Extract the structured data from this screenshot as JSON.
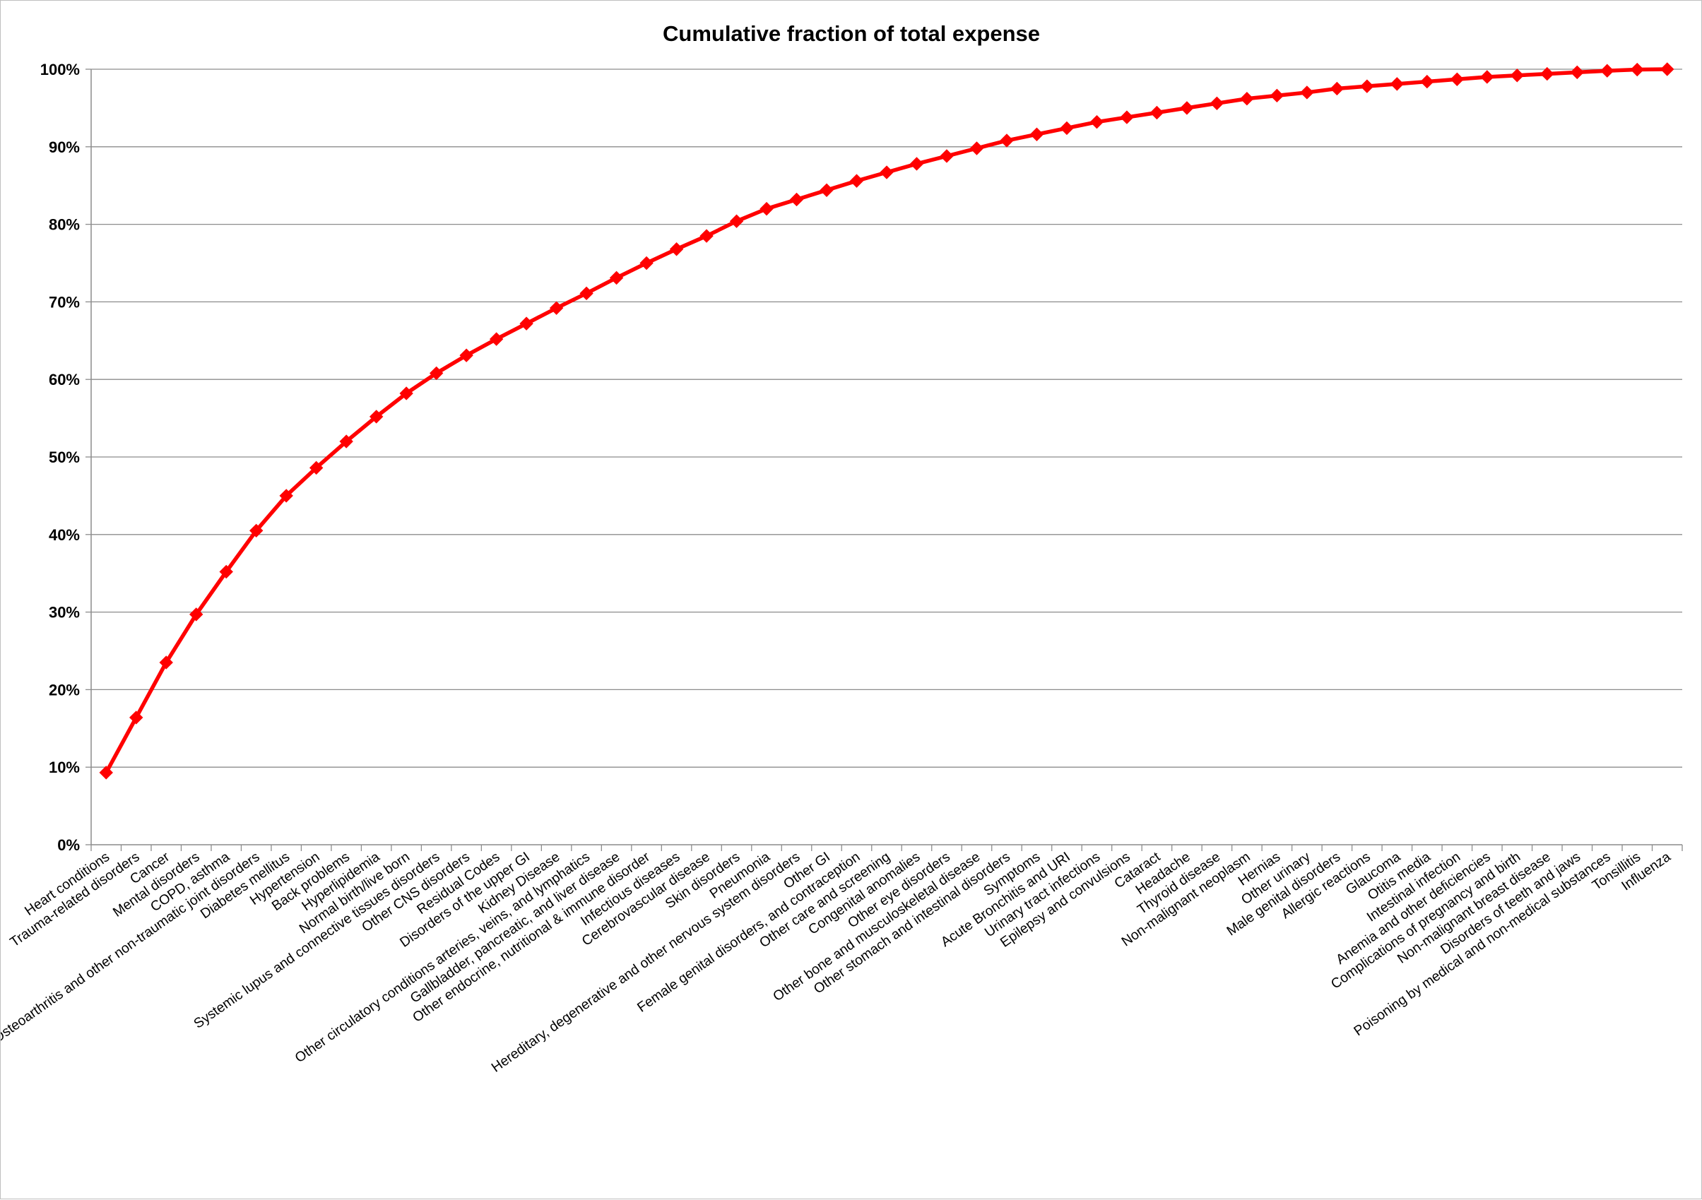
{
  "chart_data": {
    "type": "line",
    "title": "Cumulative fraction of total expense",
    "xlabel": "",
    "ylabel": "",
    "ylim": [
      0,
      100
    ],
    "y_ticks": [
      "0%",
      "10%",
      "20%",
      "30%",
      "40%",
      "50%",
      "60%",
      "70%",
      "80%",
      "90%",
      "100%"
    ],
    "grid": true,
    "legend": "none",
    "line_color": "#ff0000",
    "marker": "diamond",
    "categories": [
      "Heart conditions",
      "Trauma-related disorders",
      "Cancer",
      "Mental disorders",
      "COPD, asthma",
      "Osteoarthritis and other non-traumatic joint disorders",
      "Diabetes mellitus",
      "Hypertension",
      "Back problems",
      "Hyperlipidemia",
      "Normal birth/live born",
      "Systemic lupus and connective tissues disorders",
      "Other CNS disorders",
      "Residual Codes",
      "Disorders of the upper GI",
      "Kidney Disease",
      "Other circulatory conditions arteries, veins, and lymphatics",
      "Gallbladder, pancreatic, and liver disease",
      "Other endocrine, nutritional & immune disorder",
      "Infectious diseases",
      "Cerebrovascular disease",
      "Skin disorders",
      "Pneumonia",
      "Hereditary, degenerative and other nervous system disorders",
      "Other GI",
      "Female genital disorders, and contraception",
      "Other care and screening",
      "Congenital anomalies",
      "Other eye disorders",
      "Other bone and musculoskeletal disease",
      "Other stomach and intestinal disorders",
      "Symptoms",
      "Acute Bronchitis and URI",
      "Urinary tract infections",
      "Epilepsy and convulsions",
      "Cataract",
      "Headache",
      "Thyroid disease",
      "Non-malignant neoplasm",
      "Hernias",
      "Other urinary",
      "Male genital disorders",
      "Allergic reactions",
      "Glaucoma",
      "Otitis media",
      "Intestinal infection",
      "Anemia and other deficiencies",
      "Complications of pregnancy and birth",
      "Non-malignant breast disease",
      "Disorders of teeth and jaws",
      "Poisoning by medical and non-medical substances",
      "Tonsillitis",
      "Influenza"
    ],
    "series": [
      {
        "values": [
          9.3,
          16.4,
          23.5,
          29.7,
          35.2,
          40.5,
          45.0,
          48.6,
          52.0,
          55.2,
          58.2,
          60.8,
          63.1,
          65.2,
          67.2,
          69.2,
          71.1,
          73.1,
          75.0,
          76.8,
          78.5,
          80.4,
          82.0,
          83.2,
          84.4,
          85.6,
          86.7,
          87.8,
          88.8,
          89.8,
          90.8,
          91.6,
          92.4,
          93.2,
          93.8,
          94.4,
          95.0,
          95.6,
          96.2,
          96.6,
          97.0,
          97.5,
          97.8,
          98.1,
          98.4,
          98.7,
          99.0,
          99.2,
          99.4,
          99.6,
          99.8,
          99.95,
          100.0
        ]
      }
    ]
  }
}
